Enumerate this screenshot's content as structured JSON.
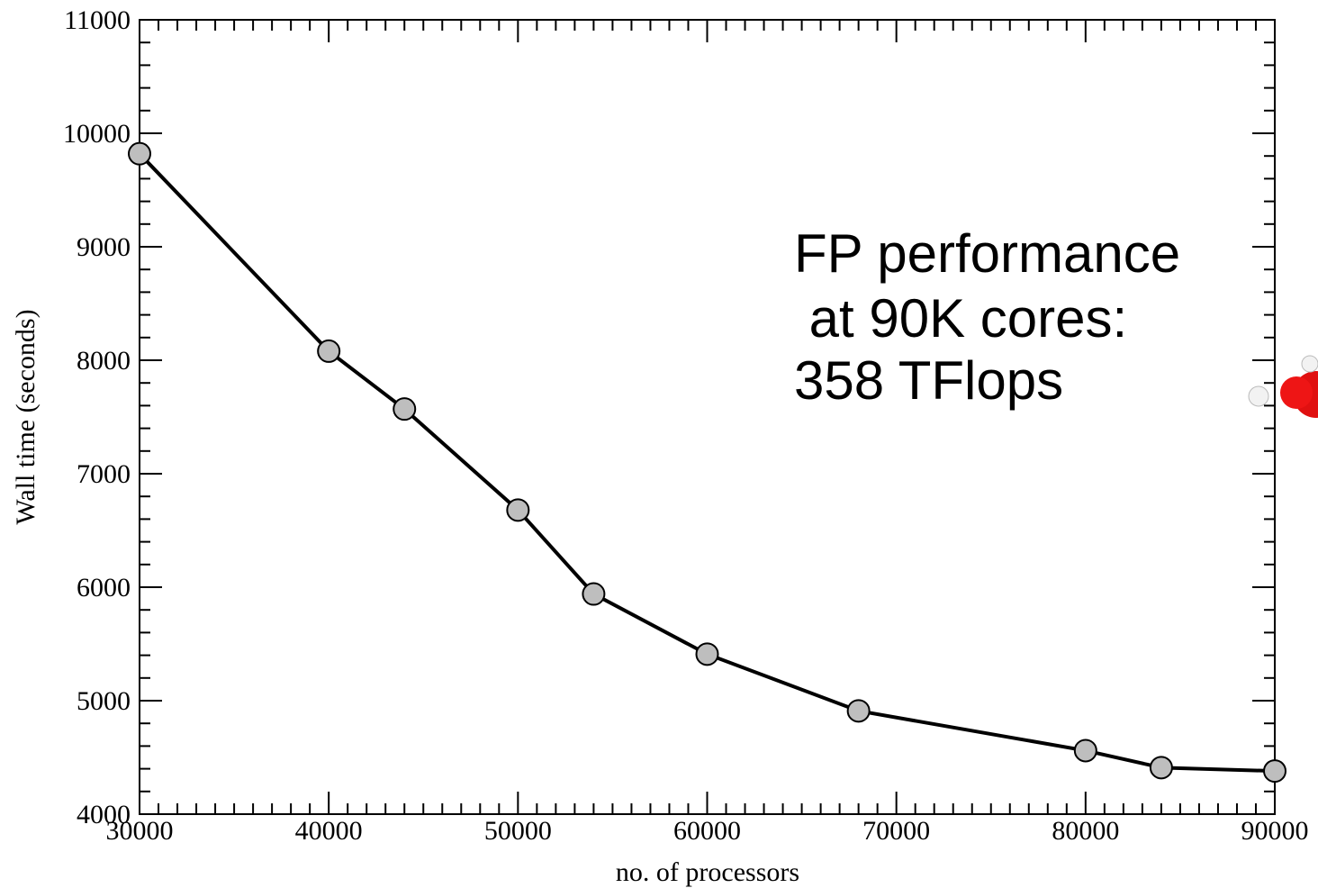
{
  "chart_data": {
    "type": "line",
    "xlabel": "no. of processors",
    "ylabel": "Wall time (seconds)",
    "annotation": [
      "FP performance",
      " at 90K cores:",
      "358 TFlops"
    ],
    "x": [
      30000,
      40000,
      44000,
      50000,
      54000,
      60000,
      68000,
      80000,
      84000,
      90000
    ],
    "series": [
      {
        "color": "#000000",
        "marker_color": "#bebebe",
        "values": [
          9820,
          8080,
          7570,
          6680,
          5940,
          5410,
          4910,
          4560,
          4410,
          4380
        ]
      }
    ],
    "xlim": [
      30000,
      90000
    ],
    "xticks": [
      30000,
      40000,
      50000,
      60000,
      70000,
      80000,
      90000
    ],
    "ylim": [
      4000,
      11000
    ],
    "yticks": [
      4000,
      5000,
      6000,
      7000,
      8000,
      9000,
      10000,
      11000
    ],
    "minor_ticks": {
      "x": 9,
      "y": 4
    }
  }
}
